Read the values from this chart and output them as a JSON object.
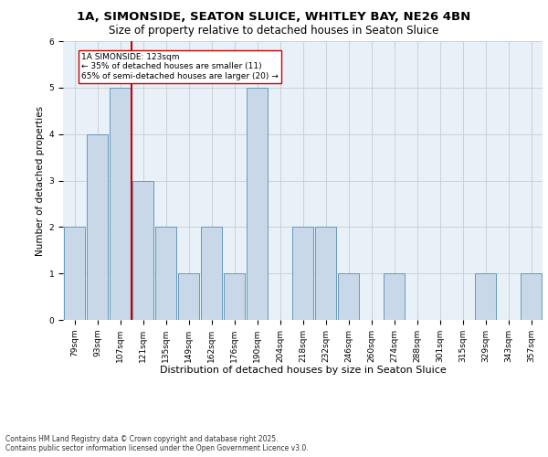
{
  "title1": "1A, SIMONSIDE, SEATON SLUICE, WHITLEY BAY, NE26 4BN",
  "title2": "Size of property relative to detached houses in Seaton Sluice",
  "xlabel": "Distribution of detached houses by size in Seaton Sluice",
  "ylabel": "Number of detached properties",
  "categories": [
    "79sqm",
    "93sqm",
    "107sqm",
    "121sqm",
    "135sqm",
    "149sqm",
    "162sqm",
    "176sqm",
    "190sqm",
    "204sqm",
    "218sqm",
    "232sqm",
    "246sqm",
    "260sqm",
    "274sqm",
    "288sqm",
    "301sqm",
    "315sqm",
    "329sqm",
    "343sqm",
    "357sqm"
  ],
  "values": [
    2,
    4,
    5,
    3,
    2,
    1,
    2,
    1,
    5,
    0,
    2,
    2,
    1,
    0,
    1,
    0,
    0,
    0,
    1,
    0,
    1
  ],
  "bar_color": "#c8d8e8",
  "bar_edge_color": "#6699bb",
  "vline_x_index": 3,
  "vline_color": "#cc0000",
  "annotation_text": "1A SIMONSIDE: 123sqm\n← 35% of detached houses are smaller (11)\n65% of semi-detached houses are larger (20) →",
  "annotation_box_color": "white",
  "annotation_box_edge_color": "#cc0000",
  "ylim": [
    0,
    6
  ],
  "yticks": [
    0,
    1,
    2,
    3,
    4,
    5,
    6
  ],
  "grid_color": "#cccccc",
  "background_color": "#e8f0f8",
  "footer_text": "Contains HM Land Registry data © Crown copyright and database right 2025.\nContains public sector information licensed under the Open Government Licence v3.0.",
  "title1_fontsize": 9.5,
  "title2_fontsize": 8.5,
  "xlabel_fontsize": 8,
  "ylabel_fontsize": 7.5,
  "annotation_fontsize": 6.5,
  "tick_fontsize": 6.5,
  "footer_fontsize": 5.5
}
